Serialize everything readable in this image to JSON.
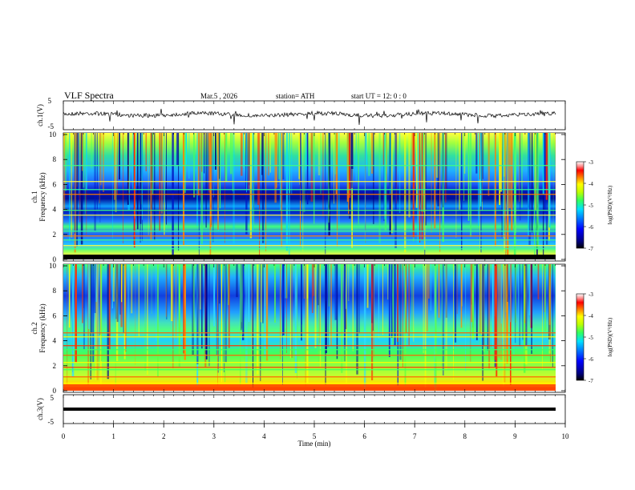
{
  "header": {
    "title": "VLF  Spectra",
    "date": "Mar.5  , 2026",
    "station": "station= ATH",
    "start_ut": "start  UT  =    12: 0   : 0"
  },
  "chart_data": {
    "type": "heatmap",
    "xlabel": "Time  (min)",
    "xlim": [
      0,
      10
    ],
    "xticks": [
      "0",
      "1",
      "2",
      "3",
      "4",
      "5",
      "6",
      "7",
      "8",
      "9",
      "10"
    ],
    "panels": [
      {
        "id": "ch1-waveform",
        "ylabel": "ch.1(V)",
        "ylim": [
          -5,
          5
        ],
        "yticks": [
          "5",
          "-5"
        ]
      },
      {
        "id": "ch1-spectrogram",
        "ylabel_line1": "ch.1",
        "ylabel_line2": "Frequency  (kHz)",
        "ylim": [
          0,
          10
        ],
        "yticks": [
          "0",
          "2",
          "4",
          "6",
          "8",
          "10"
        ],
        "colorbar": {
          "label": "log(PSD)(V²/Hz)",
          "ticks": [
            "-3",
            "-4",
            "-5",
            "-6",
            "-7"
          ],
          "range": [
            -7,
            -3
          ]
        }
      },
      {
        "id": "ch2-spectrogram",
        "ylabel_line1": "ch.2",
        "ylabel_line2": "Frequency  (kHz)",
        "ylim": [
          0,
          10
        ],
        "yticks": [
          "0",
          "2",
          "4",
          "6",
          "8",
          "10"
        ],
        "colorbar": {
          "label": "log(PSD)(V²/Hz)",
          "ticks": [
            "-3",
            "-4",
            "-5",
            "-6",
            "-7"
          ],
          "range": [
            -7,
            -3
          ]
        }
      },
      {
        "id": "ch3-waveform",
        "ylabel": "ch.3(V)",
        "ylim": [
          -5,
          5
        ],
        "yticks": [
          "5",
          "-5"
        ]
      }
    ]
  }
}
